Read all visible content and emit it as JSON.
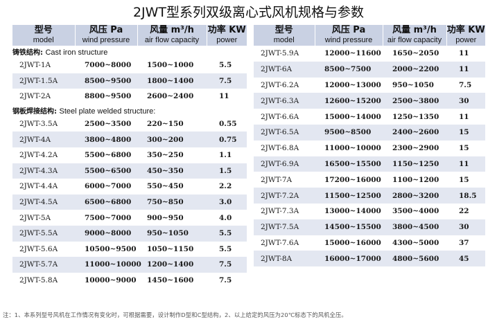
{
  "title": "2JWT型系列双级离心式风机规格与参数",
  "headers": [
    {
      "cn": "型号",
      "en": "model"
    },
    {
      "cn": "风压 Pa",
      "en": "wind pressure"
    },
    {
      "cn": "风量 m³/h",
      "en": "air flow capacity"
    },
    {
      "cn": "功率 KW",
      "en": "power"
    }
  ],
  "left_sections": [
    {
      "label_cn": "铸铁结构:",
      "label_en": "Cast iron structure",
      "rows": [
        [
          "2JWT-1A",
          "7000~8000",
          "1500~1000",
          "5.5"
        ],
        [
          "2JWT-1.5A",
          "8500~9500",
          "1800~1400",
          "7.5"
        ],
        [
          "2JWT-2A",
          "8800~9500",
          "2600~2400",
          "11"
        ]
      ]
    },
    {
      "label_cn": "钢板焊接结构:",
      "label_en": "Steel plate welded structure:",
      "rows": [
        [
          "2JWT-3.5A",
          "2500~3500",
          "220~150",
          "0.55"
        ],
        [
          "2JWT-4A",
          "3800~4800",
          "300~200",
          "0.75"
        ],
        [
          "2JWT-4.2A",
          "5500~6800",
          "350~250",
          "1.1"
        ],
        [
          "2JWT-4.3A",
          "5500~6500",
          "450~350",
          "1.5"
        ],
        [
          "2JWT-4.4A",
          "6000~7000",
          "550~450",
          "2.2"
        ],
        [
          "2JWT-4.5A",
          "6500~6800",
          "750~850",
          "3.0"
        ],
        [
          "2JWT-5A",
          "7500~7000",
          "900~950",
          "4.0"
        ],
        [
          "2JWT-5.5A",
          "9000~8000",
          "950~1050",
          "5.5"
        ],
        [
          "2JWT-5.6A",
          "10500~9500",
          "1050~1150",
          "5.5"
        ],
        [
          "2JWT-5.7A",
          "11000~10000",
          "1200~1400",
          "7.5"
        ],
        [
          "2JWT-5.8A",
          "10000~9000",
          "1450~1600",
          "7.5"
        ]
      ]
    }
  ],
  "right_rows": [
    [
      "2JWT-5.9A",
      "12000~11600",
      "1650~2050",
      "11"
    ],
    [
      "2JWT-6A",
      "8500~7500",
      "2000~2200",
      "11"
    ],
    [
      "2JWT-6.2A",
      "12000~13000",
      "950~1050",
      "7.5"
    ],
    [
      "2JWT-6.3A",
      "12600~15200",
      "2500~3800",
      "30"
    ],
    [
      "2JWT-6.6A",
      "15000~14000",
      "1250~1350",
      "11"
    ],
    [
      "2JWT-6.5A",
      "9500~8500",
      "2400~2600",
      "15"
    ],
    [
      "2JWT-6.8A",
      "11000~10000",
      "2300~2900",
      "15"
    ],
    [
      "2JWT-6.9A",
      "16500~15500",
      "1150~1250",
      "11"
    ],
    [
      "2JWT-7A",
      "17200~16000",
      "1100~1200",
      "15"
    ],
    [
      "2JWT-7.2A",
      "11500~12500",
      "2800~3200",
      "18.5"
    ],
    [
      "2JWT-7.3A",
      "13000~14000",
      "3500~4000",
      "22"
    ],
    [
      "2JWT-7.5A",
      "14500~15500",
      "3800~4500",
      "30"
    ],
    [
      "2JWT-7.6A",
      "15000~16000",
      "4300~5000",
      "37"
    ],
    [
      "2JWT-8A",
      "16000~17000",
      "4800~5600",
      "45"
    ]
  ],
  "note": "注：1、本系列型号风机在工作情况有变化时，可根据需要，设计制作D型和C型结构，2、以上给定的风压为20℃标态下的风机全压。"
}
